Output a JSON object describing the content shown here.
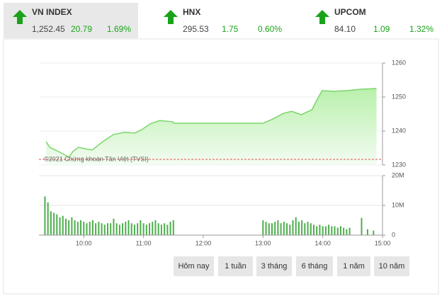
{
  "indices": [
    {
      "name": "VN INDEX",
      "value": "1,252.45",
      "change": "20.79",
      "percent": "1.69%"
    },
    {
      "name": "HNX",
      "value": "295.53",
      "change": "1.75",
      "percent": "0.60%"
    },
    {
      "name": "UPCOM",
      "value": "84.10",
      "change": "1.09",
      "percent": "1.32%"
    }
  ],
  "chart_data": [
    {
      "type": "area",
      "watermark": "©2021 Chứng khoán Tân Việt (TVSI)",
      "color": "#7ad66a",
      "reference_line": 1231.66,
      "reference_color": "#e05050",
      "x": [
        9.37,
        9.43,
        9.55,
        9.67,
        9.75,
        9.82,
        9.91,
        10.02,
        10.14,
        10.32,
        10.5,
        10.68,
        10.85,
        10.97,
        11.11,
        11.27,
        11.49,
        11.5,
        13.0,
        13.16,
        13.34,
        13.48,
        13.64,
        13.82,
        13.91,
        13.99,
        14.17,
        14.41,
        14.64,
        14.9
      ],
      "values": [
        1236.9,
        1235.2,
        1234.2,
        1233.1,
        1232.3,
        1234.0,
        1235.2,
        1234.8,
        1234.4,
        1236.9,
        1239.0,
        1239.6,
        1239.4,
        1240.4,
        1242.1,
        1243.1,
        1242.7,
        1242.3,
        1242.3,
        1243.5,
        1245.2,
        1245.8,
        1244.8,
        1246.3,
        1249.4,
        1251.9,
        1251.7,
        1251.9,
        1252.3,
        1252.5
      ],
      "xlim": [
        9.25,
        15
      ],
      "ylim": [
        1230,
        1260
      ],
      "yticks": [
        1230,
        1240,
        1250,
        1260
      ],
      "grid": true
    },
    {
      "type": "bar",
      "color": "#4cae4c",
      "x": [
        9.35,
        9.4,
        9.45,
        9.5,
        9.55,
        9.6,
        9.65,
        9.7,
        9.75,
        9.8,
        9.85,
        9.9,
        9.95,
        10,
        10.05,
        10.1,
        10.15,
        10.2,
        10.25,
        10.3,
        10.35,
        10.4,
        10.45,
        10.5,
        10.55,
        10.6,
        10.65,
        10.7,
        10.75,
        10.8,
        10.85,
        10.9,
        10.95,
        11,
        11.05,
        11.1,
        11.15,
        11.2,
        11.25,
        11.3,
        11.35,
        11.4,
        11.45,
        11.5,
        13,
        13.05,
        13.1,
        13.15,
        13.2,
        13.25,
        13.3,
        13.35,
        13.4,
        13.45,
        13.5,
        13.55,
        13.6,
        13.65,
        13.7,
        13.75,
        13.8,
        13.85,
        13.9,
        13.95,
        14,
        14.05,
        14.1,
        14.15,
        14.2,
        14.25,
        14.3,
        14.35,
        14.4,
        14.45,
        14.65,
        14.75,
        14.85
      ],
      "values": [
        13,
        11,
        8,
        7.5,
        7,
        6,
        6.5,
        5.5,
        5,
        6,
        5,
        4.5,
        5,
        4.5,
        4,
        4.5,
        5,
        4,
        4.5,
        4,
        3.5,
        4,
        4,
        5.5,
        4,
        3.5,
        4,
        4.5,
        5,
        4,
        3.5,
        4,
        5,
        4,
        3.5,
        4,
        4.5,
        5,
        4,
        3.5,
        4,
        3.5,
        4.5,
        5,
        5,
        4.5,
        4,
        4,
        4.5,
        5,
        4,
        4.5,
        4,
        3.5,
        5,
        6,
        4.5,
        5,
        4,
        4.5,
        4,
        3.5,
        3,
        3.5,
        3,
        3,
        3.5,
        3,
        3,
        2.5,
        3,
        2.5,
        2,
        2.5,
        5.8,
        2,
        1.5
      ],
      "xlim": [
        9.25,
        15
      ],
      "ylim": [
        0,
        20
      ],
      "yticks": [
        0,
        {
          "value": 10,
          "label": "10M"
        },
        {
          "value": 20,
          "label": "20M"
        }
      ],
      "xticks": [
        {
          "value": 10,
          "label": "10:00"
        },
        {
          "value": 11,
          "label": "11:00"
        },
        {
          "value": 12,
          "label": "12:00"
        },
        {
          "value": 13,
          "label": "13:00"
        },
        {
          "value": 14,
          "label": "14:00"
        },
        {
          "value": 15,
          "label": "15:00"
        }
      ]
    }
  ],
  "buttons": [
    "Hôm nay",
    "1 tuần",
    "3 tháng",
    "6 tháng",
    "1 năm",
    "10 năm"
  ]
}
